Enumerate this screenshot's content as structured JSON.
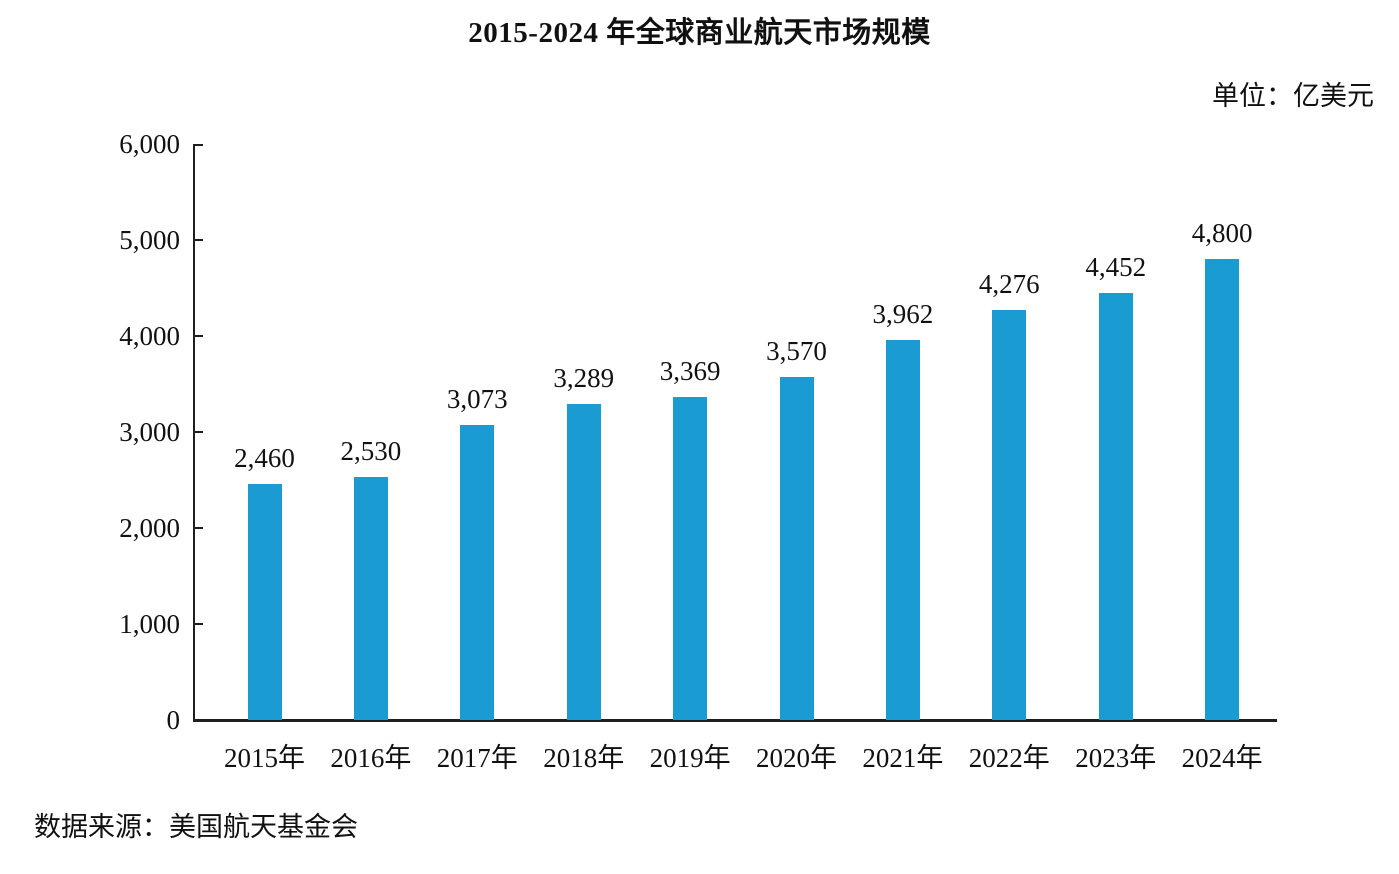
{
  "chart_data": {
    "type": "bar",
    "title": "2015-2024 年全球商业航天市场规模",
    "unit_label": "单位：亿美元",
    "source": "数据来源：美国航天基金会",
    "categories": [
      "2015年",
      "2016年",
      "2017年",
      "2018年",
      "2019年",
      "2020年",
      "2021年",
      "2022年",
      "2023年",
      "2024年"
    ],
    "values": [
      2460,
      2530,
      3073,
      3289,
      3369,
      3570,
      3962,
      4276,
      4452,
      4800
    ],
    "value_labels": [
      "2,460",
      "2,530",
      "3,073",
      "3,289",
      "3,369",
      "3,570",
      "3,962",
      "4,276",
      "4,452",
      "4,800"
    ],
    "xlabel": "",
    "ylabel": "",
    "ylim": [
      0,
      6000
    ],
    "ytick_interval": 1000,
    "ytick_labels": [
      "0",
      "1,000",
      "2,000",
      "3,000",
      "4,000",
      "5,000",
      "6,000"
    ],
    "grid": false,
    "legend": null,
    "bar_color": "#1A9CD3",
    "axis_color": "#1F1F1F",
    "text_color": "#111111"
  }
}
